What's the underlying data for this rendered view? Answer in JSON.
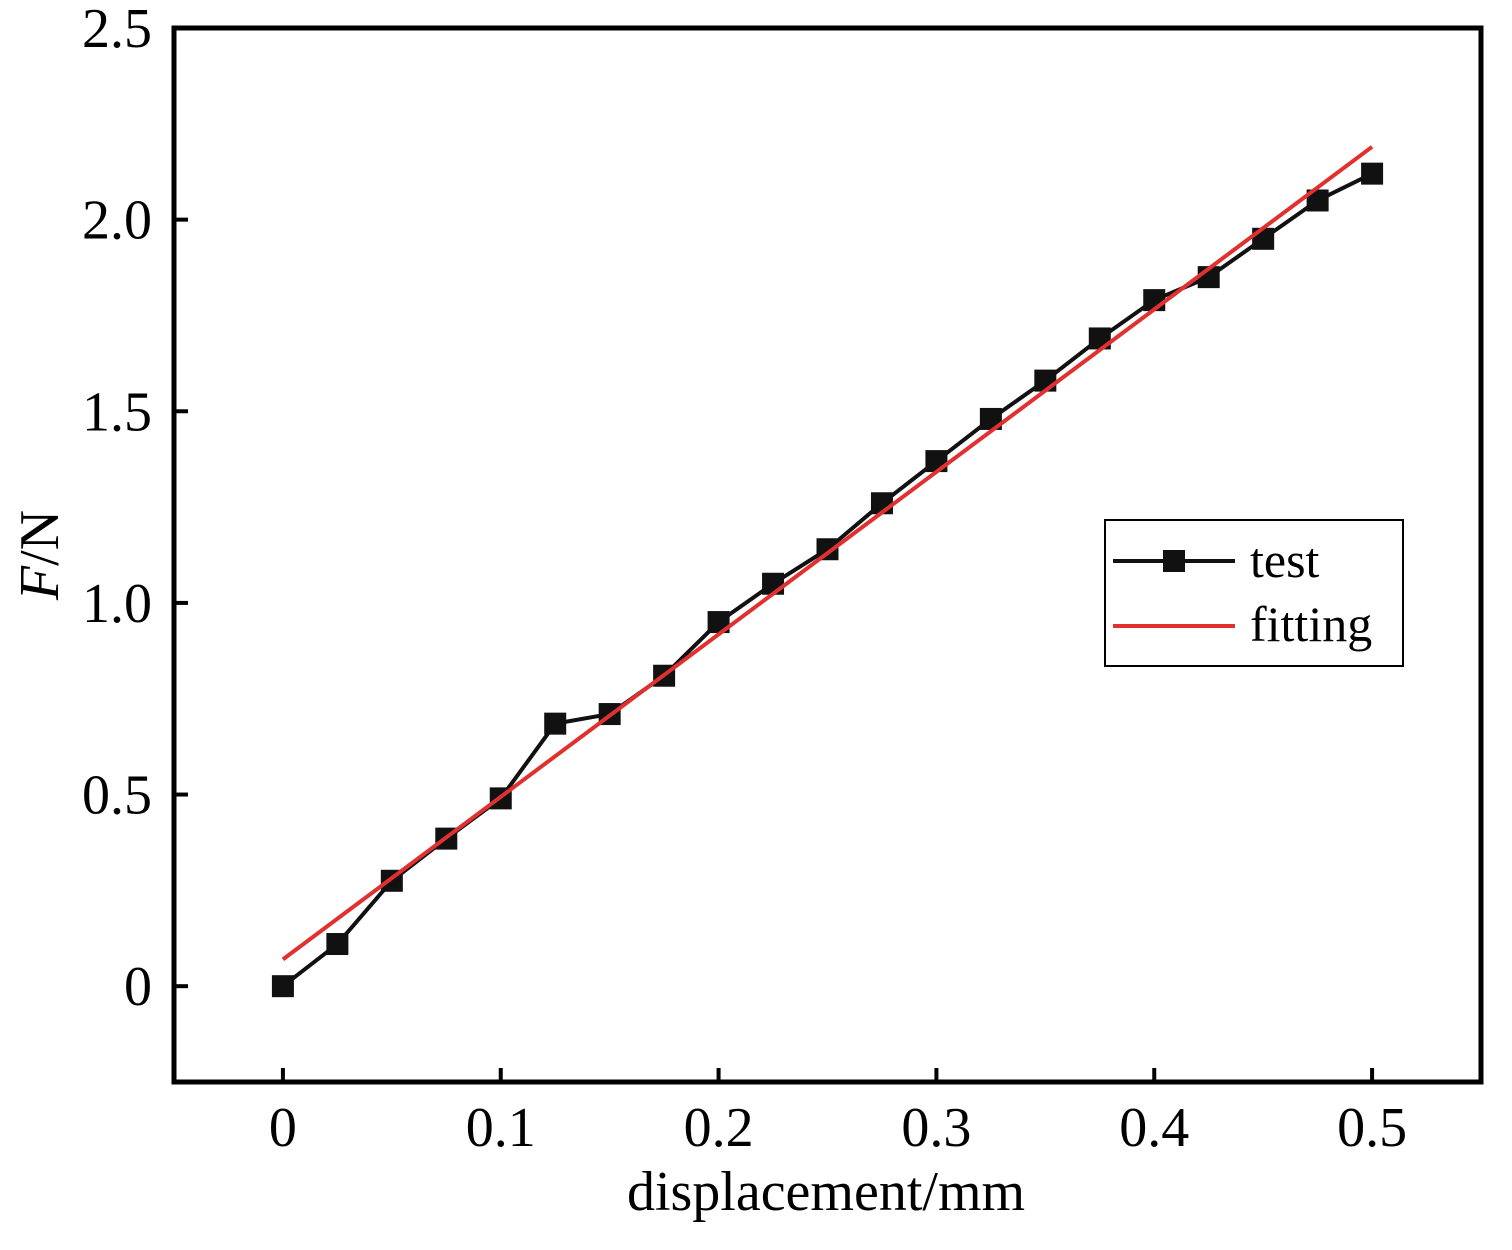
{
  "chart_data": {
    "type": "line",
    "title": "",
    "xlabel": "displacement/mm",
    "ylabel": {
      "italic": "F",
      "rest": "/N"
    },
    "xlim": [
      -0.05,
      0.55
    ],
    "ylim": [
      -0.25,
      2.5
    ],
    "xticks": [
      0,
      0.1,
      0.2,
      0.3,
      0.4,
      0.5
    ],
    "xtick_labels": [
      "0",
      "0.1",
      "0.2",
      "0.3",
      "0.4",
      "0.5"
    ],
    "yticks": [
      0,
      0.5,
      1.0,
      1.5,
      2.0,
      2.5
    ],
    "ytick_labels": [
      "0",
      "0.5",
      "1.0",
      "1.5",
      "2.0",
      "2.5"
    ],
    "grid": false,
    "legend_position": "right",
    "series": [
      {
        "name": "test",
        "color": "#111111",
        "marker": "square",
        "x": [
          0,
          0.025,
          0.05,
          0.075,
          0.1,
          0.125,
          0.15,
          0.175,
          0.2,
          0.225,
          0.25,
          0.275,
          0.3,
          0.325,
          0.35,
          0.375,
          0.4,
          0.425,
          0.45,
          0.475,
          0.5
        ],
        "y": [
          0.0,
          0.11,
          0.275,
          0.385,
          0.49,
          0.685,
          0.71,
          0.81,
          0.95,
          1.05,
          1.14,
          1.26,
          1.37,
          1.48,
          1.58,
          1.69,
          1.79,
          1.85,
          1.95,
          2.05,
          2.12
        ]
      },
      {
        "name": "fitting",
        "color": "#e03030",
        "marker": "none",
        "x": [
          0,
          0.5
        ],
        "y": [
          0.07,
          2.19
        ]
      }
    ]
  }
}
